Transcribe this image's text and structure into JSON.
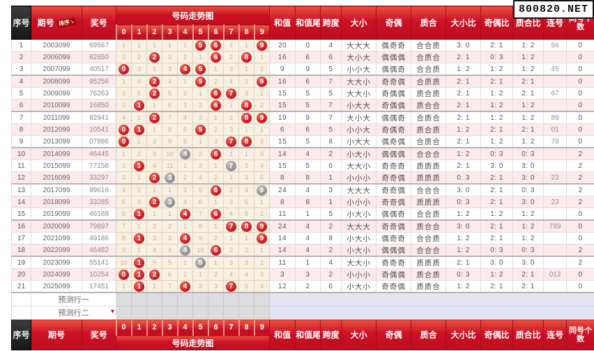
{
  "watermark": "800820.NET",
  "colors": {
    "accent_red": "#c70f22",
    "header_dark": "#222222",
    "ball_red": "#c21020",
    "ball_gray": "#909090",
    "trend_bg": "#f8f1e2",
    "stripe_pink": "#fdeaea",
    "predict_trend_bg": "#dcdcdc",
    "predict_right_bg": "#e4e4f2"
  },
  "header": {
    "seq": "序号",
    "issue": "期号",
    "sort_label": "排序",
    "prize": "奖号",
    "trend_title": "号码走势图",
    "digits": [
      "0",
      "1",
      "2",
      "3",
      "4",
      "5",
      "6",
      "7",
      "8",
      "9"
    ],
    "cols": [
      "和值",
      "和值尾",
      "跨度",
      "大小",
      "奇偶",
      "质合",
      "大小比",
      "奇偶比",
      "质合比",
      "连号",
      "同号个数"
    ]
  },
  "rows": [
    {
      "seq": "1",
      "issue": "2003099",
      "prize": "69567",
      "trend": [
        "1",
        "1",
        "1",
        "1",
        "1",
        "R5",
        "R6",
        "1",
        "1",
        "R9"
      ],
      "sum": "20",
      "sum_tail": "0",
      "span": "4",
      "size": "大大大",
      "parity": "偶奇奇",
      "prime": "合合质",
      "size_ratio": "3: 0",
      "parity_ratio": "2: 1",
      "prime_ratio": "1: 2",
      "consecutive": "56",
      "same_count": "0"
    },
    {
      "seq": "2",
      "issue": "2006099",
      "prize": "82650",
      "trend": [
        "2",
        "2",
        "R2",
        "2",
        "2",
        "1",
        "R6",
        "2",
        "R8",
        "1"
      ],
      "sum": "16",
      "sum_tail": "6",
      "span": "6",
      "size": "大小大",
      "parity": "偶偶偶",
      "prime": "合质合",
      "size_ratio": "2: 1",
      "parity_ratio": "0: 3",
      "prime_ratio": "1: 2",
      "consecutive": "",
      "same_count": "0"
    },
    {
      "seq": "3",
      "issue": "2007099",
      "prize": "40517",
      "trend": [
        "R0",
        "3",
        "1",
        "3",
        "R4",
        "R5",
        "1",
        "3",
        "1",
        "2"
      ],
      "sum": "9",
      "sum_tail": "9",
      "span": "5",
      "size": "小小大",
      "parity": "偶偶奇",
      "prime": "合合质",
      "size_ratio": "1: 2",
      "parity_ratio": "1: 2",
      "prime_ratio": "1: 2",
      "consecutive": "45",
      "same_count": "0"
    },
    {
      "seq": "4",
      "issue": "2008099",
      "prize": "95256",
      "trend": [
        "1",
        "4",
        "R2",
        "4",
        "1",
        "R5",
        "2",
        "4",
        "2",
        "R9"
      ],
      "sum": "16",
      "sum_tail": "6",
      "span": "7",
      "size": "大大小",
      "parity": "奇奇偶",
      "prime": "合质质",
      "size_ratio": "2: 1",
      "parity_ratio": "2: 1",
      "prime_ratio": "2: 1",
      "consecutive": "",
      "same_count": "0"
    },
    {
      "seq": "5",
      "issue": "2009099",
      "prize": "76263",
      "trend": [
        "2",
        "5",
        "R2",
        "5",
        "2",
        "1",
        "R6",
        "R7",
        "3",
        "1"
      ],
      "sum": "15",
      "sum_tail": "5",
      "span": "5",
      "size": "大大小",
      "parity": "奇偶偶",
      "prime": "质合质",
      "size_ratio": "2: 1",
      "parity_ratio": "1: 2",
      "prime_ratio": "2: 1",
      "consecutive": "67",
      "same_count": "0"
    },
    {
      "seq": "6",
      "issue": "2010099",
      "prize": "16850",
      "trend": [
        "3",
        "R1",
        "1",
        "6",
        "3",
        "2",
        "R6",
        "1",
        "R8",
        "2"
      ],
      "sum": "15",
      "sum_tail": "5",
      "span": "7",
      "size": "小大大",
      "parity": "奇偶偶",
      "prime": "质合合",
      "size_ratio": "2: 1",
      "parity_ratio": "1: 2",
      "prime_ratio": "1: 2",
      "consecutive": "",
      "same_count": "0"
    },
    {
      "seq": "7",
      "issue": "2011099",
      "prize": "82941",
      "trend": [
        "4",
        "1",
        "R2",
        "7",
        "4",
        "3",
        "1",
        "2",
        "R8",
        "R9"
      ],
      "sum": "19",
      "sum_tail": "9",
      "span": "7",
      "size": "大小大",
      "parity": "偶偶奇",
      "prime": "合质合",
      "size_ratio": "2: 1",
      "parity_ratio": "1: 2",
      "prime_ratio": "1: 2",
      "consecutive": "89",
      "same_count": "0"
    },
    {
      "seq": "8",
      "issue": "2012099",
      "prize": "10541",
      "trend": [
        "R0",
        "R1",
        "1",
        "8",
        "5",
        "R5",
        "2",
        "3",
        "1",
        "1"
      ],
      "sum": "6",
      "sum_tail": "6",
      "span": "5",
      "size": "小小大",
      "parity": "奇偶奇",
      "prime": "质合质",
      "size_ratio": "1: 2",
      "parity_ratio": "2: 1",
      "prime_ratio": "2: 1",
      "consecutive": "01",
      "same_count": "0"
    },
    {
      "seq": "9",
      "issue": "2013099",
      "prize": "07886",
      "trend": [
        "R0",
        "1",
        "2",
        "9",
        "6",
        "1",
        "3",
        "R7",
        "R8",
        "2"
      ],
      "sum": "15",
      "sum_tail": "5",
      "span": "8",
      "size": "小大大",
      "parity": "偶奇偶",
      "prime": "合质合",
      "size_ratio": "2: 1",
      "parity_ratio": "1: 2",
      "prime_ratio": "1: 2",
      "consecutive": "78",
      "same_count": "0"
    },
    {
      "seq": "10",
      "issue": "2014099",
      "prize": "46445",
      "trend": [
        "1",
        "2",
        "3",
        "10",
        "G4",
        "2",
        "R6",
        "1",
        "1",
        "3"
      ],
      "sum": "14",
      "sum_tail": "4",
      "span": "2",
      "size": "小大小",
      "parity": "偶偶偶",
      "prime": "合合合",
      "size_ratio": "1: 2",
      "parity_ratio": "0: 3",
      "prime_ratio": "0: 3",
      "consecutive": "",
      "same_count": "2"
    },
    {
      "seq": "11",
      "issue": "2015099",
      "prize": "77158",
      "trend": [
        "2",
        "R1",
        "4",
        "11",
        "1",
        "3",
        "1",
        "G7",
        "2",
        "4"
      ],
      "sum": "15",
      "sum_tail": "5",
      "span": "6",
      "size": "大大小",
      "parity": "奇奇奇",
      "prime": "质质质",
      "size_ratio": "2: 1",
      "parity_ratio": "3: 0",
      "prime_ratio": "3: 0",
      "consecutive": "",
      "same_count": "2"
    },
    {
      "seq": "12",
      "issue": "2016099",
      "prize": "33297",
      "trend": [
        "3",
        "1",
        "R2",
        "G3",
        "2",
        "4",
        "2",
        "1",
        "3",
        "5"
      ],
      "sum": "8",
      "sum_tail": "8",
      "span": "1",
      "size": "小小小",
      "parity": "奇奇偶",
      "prime": "质质质",
      "size_ratio": "0: 3",
      "parity_ratio": "2: 1",
      "prime_ratio": "3: 0",
      "consecutive": "23",
      "same_count": "2"
    },
    {
      "seq": "13",
      "issue": "2017099",
      "prize": "99616",
      "trend": [
        "4",
        "2",
        "1",
        "1",
        "3",
        "5",
        "R6",
        "2",
        "4",
        "G9"
      ],
      "sum": "24",
      "sum_tail": "4",
      "span": "3",
      "size": "大大大",
      "parity": "奇奇偶",
      "prime": "合合合",
      "size_ratio": "3: 0",
      "parity_ratio": "2: 1",
      "prime_ratio": "0: 3",
      "consecutive": "",
      "same_count": "2"
    },
    {
      "seq": "14",
      "issue": "2018099",
      "prize": "33285",
      "trend": [
        "5",
        "3",
        "R2",
        "G3",
        "4",
        "6",
        "1",
        "3",
        "5",
        "1"
      ],
      "sum": "8",
      "sum_tail": "8",
      "span": "1",
      "size": "小小小",
      "parity": "奇奇偶",
      "prime": "质质质",
      "size_ratio": "0: 3",
      "parity_ratio": "2: 1",
      "prime_ratio": "3: 0",
      "consecutive": "23",
      "same_count": "2"
    },
    {
      "seq": "15",
      "issue": "2019099",
      "prize": "46188",
      "trend": [
        "6",
        "R1",
        "1",
        "1",
        "R4",
        "7",
        "R6",
        "4",
        "6",
        "2"
      ],
      "sum": "11",
      "sum_tail": "1",
      "span": "5",
      "size": "小大小",
      "parity": "偶偶奇",
      "prime": "合合质",
      "size_ratio": "1: 2",
      "parity_ratio": "1: 2",
      "prime_ratio": "1: 2",
      "consecutive": "",
      "same_count": "0"
    },
    {
      "seq": "16",
      "issue": "2020099",
      "prize": "79897",
      "trend": [
        "7",
        "1",
        "2",
        "2",
        "1",
        "8",
        "1",
        "R7",
        "R8",
        "R9"
      ],
      "sum": "24",
      "sum_tail": "4",
      "span": "2",
      "size": "大大大",
      "parity": "奇奇偶",
      "prime": "质合合",
      "size_ratio": "3: 0",
      "parity_ratio": "2: 1",
      "prime_ratio": "1: 2",
      "consecutive": "789",
      "same_count": "0"
    },
    {
      "seq": "17",
      "issue": "2021099",
      "prize": "49186",
      "trend": [
        "8",
        "R1",
        "3",
        "3",
        "R4",
        "9",
        "2",
        "1",
        "1",
        "R9"
      ],
      "sum": "14",
      "sum_tail": "4",
      "span": "8",
      "size": "小大小",
      "parity": "偶奇奇",
      "prime": "合合质",
      "size_ratio": "1: 2",
      "parity_ratio": "2: 1",
      "prime_ratio": "1: 2",
      "consecutive": "",
      "same_count": "0"
    },
    {
      "seq": "18",
      "issue": "2022099",
      "prize": "46482",
      "trend": [
        "9",
        "1",
        "4",
        "4",
        "G4",
        "10",
        "R6",
        "2",
        "2",
        "1"
      ],
      "sum": "14",
      "sum_tail": "4",
      "span": "2",
      "size": "小大小",
      "parity": "偶偶偶",
      "prime": "合合合",
      "size_ratio": "1: 2",
      "parity_ratio": "0: 3",
      "prime_ratio": "0: 3",
      "consecutive": "",
      "same_count": "2"
    },
    {
      "seq": "19",
      "issue": "2023099",
      "prize": "55141",
      "trend": [
        "10",
        "R1",
        "5",
        "5",
        "1",
        "G5",
        "1",
        "3",
        "3",
        "2"
      ],
      "sum": "11",
      "sum_tail": "1",
      "span": "4",
      "size": "大大小",
      "parity": "奇奇奇",
      "prime": "质质质",
      "size_ratio": "2: 1",
      "parity_ratio": "3: 0",
      "prime_ratio": "3: 0",
      "consecutive": "",
      "same_count": "2"
    },
    {
      "seq": "20",
      "issue": "2024099",
      "prize": "10254",
      "trend": [
        "R0",
        "R1",
        "R2",
        "6",
        "2",
        "1",
        "2",
        "4",
        "4",
        "3"
      ],
      "sum": "3",
      "sum_tail": "3",
      "span": "2",
      "size": "小小小",
      "parity": "奇偶偶",
      "prime": "质合质",
      "size_ratio": "0: 3",
      "parity_ratio": "1: 2",
      "prime_ratio": "2: 1",
      "consecutive": "012",
      "same_count": "0"
    },
    {
      "seq": "21",
      "issue": "2025099",
      "prize": "17451",
      "trend": [
        "1",
        "R1",
        "1",
        "7",
        "R4",
        "2",
        "3",
        "R7",
        "5",
        "4"
      ],
      "sum": "12",
      "sum_tail": "2",
      "span": "6",
      "size": "小大小",
      "parity": "奇奇偶",
      "prime": "质质合",
      "size_ratio": "1: 2",
      "parity_ratio": "2: 1",
      "prime_ratio": "2: 1",
      "consecutive": "",
      "same_count": "0"
    }
  ],
  "predict_rows": [
    {
      "label": "预测行一",
      "marker": false
    },
    {
      "label": "预测行二",
      "marker": true
    }
  ]
}
